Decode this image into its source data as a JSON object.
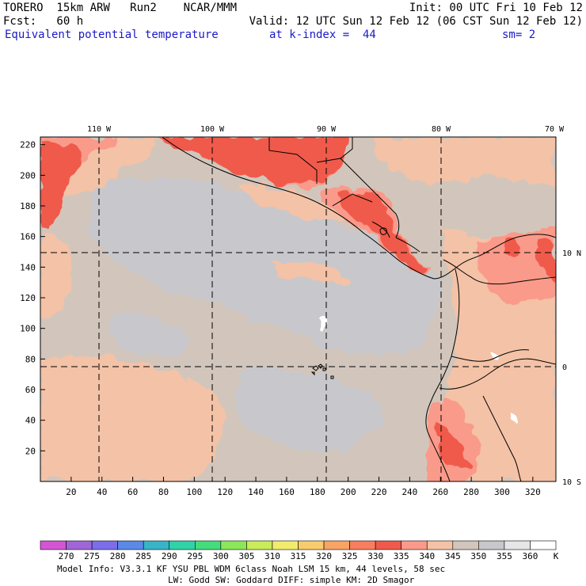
{
  "header": {
    "line1_left": "TORERO  15km ARW   Run2    NCAR/MMM",
    "line1_right": "Init: 00 UTC Fri 10 Feb 12",
    "line2_left": "Fcst:   60 h",
    "line2_right": "Valid: 12 UTC Sun 12 Feb 12 (06 CST Sun 12 Feb 12)",
    "field_name": "Equivalent potential temperature",
    "level": "at k-index =  44",
    "smoothing": "sm= 2"
  },
  "map": {
    "lon_labels": [
      "110 W",
      "100 W",
      "90 W",
      "80 W",
      "70 W"
    ],
    "lat_labels": [
      "10 N",
      "0",
      "10 S"
    ],
    "x_ticks": [
      "20",
      "40",
      "60",
      "80",
      "100",
      "120",
      "140",
      "160",
      "180",
      "200",
      "220",
      "240",
      "260",
      "280",
      "300",
      "320"
    ],
    "y_ticks": [
      "20",
      "40",
      "60",
      "80",
      "100",
      "120",
      "140",
      "160",
      "180",
      "200",
      "220"
    ]
  },
  "colorbar": {
    "values": [
      "270",
      "275",
      "280",
      "285",
      "290",
      "295",
      "300",
      "305",
      "310",
      "315",
      "320",
      "325",
      "330",
      "335",
      "340",
      "345",
      "350",
      "355",
      "360"
    ],
    "unit": "K",
    "colors": [
      "#d455d4",
      "#a066d8",
      "#7c6ee8",
      "#5a8ae6",
      "#38b4c8",
      "#30d2a8",
      "#44dc7c",
      "#8ce65a",
      "#c8ec5a",
      "#f2ec6e",
      "#f8cc6e",
      "#f8a464",
      "#f87e60",
      "#f05a4c",
      "#fa9a8a",
      "#f4c2a6",
      "#d2c6bc",
      "#c8c8cc",
      "#e6e6e6",
      "#ffffff"
    ]
  },
  "footer": {
    "line1": "Model Info: V3.3.1    KF     YSU PBL  WDM 6class  Noah LSM  15 km,   44 levels,   58 sec",
    "line2": "LW: Godd SW: Goddard DIFF: simple KM: 2D Smagor"
  }
}
